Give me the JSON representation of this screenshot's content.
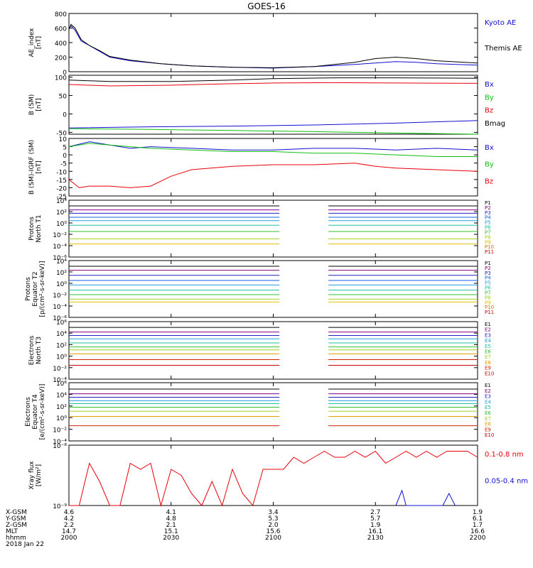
{
  "title": "GOES-16",
  "colors": {
    "black": "#000000",
    "red": "#e8000b",
    "blue": "#1010d0",
    "green": "#10c010"
  },
  "chart_data": [
    {
      "type": "line",
      "id": "ae",
      "ylabel": [
        "AE_index",
        "[nT]"
      ],
      "ylim": [
        0,
        800
      ],
      "yscale": "linear",
      "ticks": [
        {
          "v": 0,
          "label": "0"
        },
        {
          "v": 200,
          "label": "200"
        },
        {
          "v": 400,
          "label": "400"
        },
        {
          "v": 600,
          "label": "600"
        },
        {
          "v": 800,
          "label": "800"
        }
      ],
      "series": [
        {
          "name": "Kyoto AE",
          "color": "#1010d0",
          "x": [
            0,
            1,
            3,
            6,
            10,
            15,
            20,
            30,
            45,
            60,
            80,
            100,
            120,
            140,
            150,
            160,
            170,
            180,
            200
          ],
          "y": [
            600,
            630,
            570,
            420,
            360,
            280,
            200,
            150,
            110,
            80,
            60,
            50,
            70,
            100,
            120,
            140,
            130,
            110,
            90
          ]
        },
        {
          "name": "Themis AE",
          "color": "#000000",
          "x": [
            0,
            1,
            3,
            6,
            10,
            15,
            20,
            30,
            45,
            60,
            80,
            100,
            120,
            140,
            150,
            160,
            170,
            180,
            200
          ],
          "y": [
            580,
            650,
            600,
            440,
            360,
            290,
            210,
            160,
            110,
            80,
            60,
            55,
            70,
            130,
            180,
            200,
            180,
            150,
            120
          ]
        }
      ]
    },
    {
      "type": "line",
      "id": "bsm",
      "ylabel": [
        "B (SM)",
        "[nT]"
      ],
      "ylim": [
        -55,
        105
      ],
      "yscale": "linear",
      "ticks": [
        {
          "v": -50,
          "label": "-50"
        },
        {
          "v": 0,
          "label": "0"
        },
        {
          "v": 50,
          "label": "50"
        },
        {
          "v": 100,
          "label": "100"
        }
      ],
      "series": [
        {
          "name": "Bx",
          "color": "#1010d0",
          "x": [
            0,
            40,
            80,
            120,
            160,
            200
          ],
          "y": [
            -38,
            -35,
            -33,
            -30,
            -25,
            -18
          ]
        },
        {
          "name": "By",
          "color": "#10c010",
          "x": [
            0,
            40,
            80,
            120,
            160,
            200
          ],
          "y": [
            -40,
            -42,
            -45,
            -48,
            -52,
            -55
          ]
        },
        {
          "name": "Bz",
          "color": "#e8000b",
          "x": [
            0,
            20,
            50,
            80,
            100,
            130,
            160,
            200
          ],
          "y": [
            80,
            76,
            78,
            82,
            84,
            85,
            84,
            83
          ]
        },
        {
          "name": "Bmag",
          "color": "#000000",
          "x": [
            0,
            20,
            50,
            80,
            100,
            130,
            160,
            200
          ],
          "y": [
            92,
            88,
            88,
            92,
            96,
            98,
            98,
            97
          ]
        }
      ]
    },
    {
      "type": "line",
      "id": "bigrf",
      "ylabel": [
        "B (SM)-IGRF (SM)",
        "[nT]"
      ],
      "ylim": [
        -25,
        10
      ],
      "yscale": "linear",
      "ticks": [
        {
          "v": 10,
          "label": "10"
        },
        {
          "v": 5,
          "label": "5"
        },
        {
          "v": 0,
          "label": "0"
        },
        {
          "v": -5,
          "label": "-5"
        },
        {
          "v": -10,
          "label": "-10"
        },
        {
          "v": -15,
          "label": "-15"
        },
        {
          "v": -20,
          "label": "-20"
        },
        {
          "v": -25,
          "label": "-25"
        }
      ],
      "series": [
        {
          "name": "Bx",
          "color": "#1010d0",
          "x": [
            0,
            10,
            20,
            30,
            40,
            60,
            80,
            100,
            120,
            140,
            160,
            180,
            200
          ],
          "y": [
            5,
            8,
            6,
            4,
            5,
            4,
            3,
            3,
            4,
            4,
            3,
            4,
            3
          ]
        },
        {
          "name": "By",
          "color": "#10c010",
          "x": [
            0,
            10,
            20,
            30,
            40,
            60,
            80,
            100,
            120,
            140,
            160,
            180,
            200
          ],
          "y": [
            5,
            7,
            6,
            5,
            4,
            3,
            2,
            2,
            1,
            1,
            0,
            -1,
            -1
          ]
        },
        {
          "name": "Bz",
          "color": "#e8000b",
          "x": [
            0,
            5,
            10,
            20,
            30,
            40,
            50,
            60,
            80,
            100,
            120,
            140,
            150,
            160,
            180,
            200
          ],
          "y": [
            -15,
            -20,
            -19,
            -19,
            -20,
            -19,
            -13,
            -9,
            -7,
            -6,
            -6,
            -5,
            -7,
            -8,
            -9,
            -10
          ]
        }
      ]
    },
    {
      "type": "line",
      "id": "pt1",
      "ylabel": [
        "Protons",
        "North T1"
      ],
      "ylim": [
        -6,
        4
      ],
      "yscale": "log",
      "ticks": [
        {
          "v": 4,
          "label": "10⁴"
        },
        {
          "v": 2,
          "label": "10²"
        },
        {
          "v": 0,
          "label": "10⁰"
        },
        {
          "v": -2,
          "label": "10⁻²"
        },
        {
          "v": -4,
          "label": "10⁻⁴"
        },
        {
          "v": -6,
          "label": "10⁻⁶"
        }
      ],
      "gap": [
        103,
        127
      ],
      "series": [
        {
          "name": "P1",
          "color": "#000000",
          "level": 3.0
        },
        {
          "name": "P2",
          "color": "#800080",
          "level": 2.3
        },
        {
          "name": "P3",
          "color": "#2020c0",
          "level": 1.7
        },
        {
          "name": "P4",
          "color": "#1060e0",
          "level": 1.0
        },
        {
          "name": "P5",
          "color": "#20a0e0",
          "level": 0.4
        },
        {
          "name": "P6",
          "color": "#20c0a0",
          "level": -0.4
        },
        {
          "name": "P7",
          "color": "#30c030",
          "level": -1.5
        },
        {
          "name": "P8",
          "color": "#a0d020",
          "level": -2.8
        },
        {
          "name": "P9",
          "color": "#e0c000",
          "level": -3.7
        },
        {
          "name": "P10",
          "color": "#e07000",
          "level": -99
        },
        {
          "name": "P11",
          "color": "#d00000",
          "level": -99
        }
      ]
    },
    {
      "type": "line",
      "id": "pt2",
      "ylabel": [
        "Protons",
        "Equator T2",
        "[p/(cm²-s-sr-keV)]"
      ],
      "ylim": [
        -6,
        4
      ],
      "yscale": "log",
      "ticks": [
        {
          "v": 4,
          "label": "10⁴"
        },
        {
          "v": 2,
          "label": "10²"
        },
        {
          "v": 0,
          "label": "10⁰"
        },
        {
          "v": -2,
          "label": "10⁻²"
        },
        {
          "v": -4,
          "label": "10⁻⁴"
        },
        {
          "v": -6,
          "label": "10⁻⁶"
        }
      ],
      "gap": [
        103,
        127
      ],
      "series": [
        {
          "name": "P1",
          "color": "#000000",
          "level": 3.0
        },
        {
          "name": "P2",
          "color": "#800080",
          "level": 2.3
        },
        {
          "name": "P3",
          "color": "#2020c0",
          "level": 1.4
        },
        {
          "name": "P4",
          "color": "#1060e0",
          "level": 0.5
        },
        {
          "name": "P5",
          "color": "#20a0e0",
          "level": -0.3
        },
        {
          "name": "P6",
          "color": "#20c0a0",
          "level": -1.2
        },
        {
          "name": "P7",
          "color": "#30c030",
          "level": -2.0
        },
        {
          "name": "P8",
          "color": "#a0d020",
          "level": -2.8
        },
        {
          "name": "P9",
          "color": "#e0c000",
          "level": -3.3
        },
        {
          "name": "P10",
          "color": "#e07000",
          "level": -99
        },
        {
          "name": "P11",
          "color": "#d00000",
          "level": -99
        }
      ]
    },
    {
      "type": "line",
      "id": "et3",
      "ylabel": [
        "Electrons",
        "North T3"
      ],
      "ylim": [
        -4,
        6
      ],
      "yscale": "log",
      "ticks": [
        {
          "v": 6,
          "label": "10⁶"
        },
        {
          "v": 4,
          "label": "10⁴"
        },
        {
          "v": 2,
          "label": "10²"
        },
        {
          "v": 0,
          "label": "10⁰"
        },
        {
          "v": -2,
          "label": "10⁻²"
        },
        {
          "v": -4,
          "label": "10⁻⁴"
        }
      ],
      "gap": [
        103,
        127
      ],
      "series": [
        {
          "name": "E1",
          "color": "#000000",
          "level": 5.0
        },
        {
          "name": "E2",
          "color": "#800080",
          "level": 4.2
        },
        {
          "name": "E3",
          "color": "#2020c0",
          "level": 3.6
        },
        {
          "name": "E4",
          "color": "#20a0e0",
          "level": 3.0
        },
        {
          "name": "E5",
          "color": "#20c0a0",
          "level": 2.3
        },
        {
          "name": "E6",
          "color": "#30c030",
          "level": 1.6
        },
        {
          "name": "E7",
          "color": "#a0d020",
          "level": 1.1
        },
        {
          "name": "E8",
          "color": "#e0a000",
          "level": 0.4
        },
        {
          "name": "E9",
          "color": "#d02000",
          "level": -0.6
        },
        {
          "name": "E10",
          "color": "#c00000",
          "level": -1.6
        }
      ]
    },
    {
      "type": "line",
      "id": "et4",
      "ylabel": [
        "Electrons",
        "Equator T4",
        "[e/(cm²-s-sr-keV)]"
      ],
      "ylim": [
        -4,
        6
      ],
      "yscale": "log",
      "ticks": [
        {
          "v": 6,
          "label": "10⁶"
        },
        {
          "v": 4,
          "label": "10⁴"
        },
        {
          "v": 2,
          "label": "10²"
        },
        {
          "v": 0,
          "label": "10⁰"
        },
        {
          "v": -2,
          "label": "10⁻²"
        },
        {
          "v": -4,
          "label": "10⁻⁴"
        }
      ],
      "gap": [
        103,
        127
      ],
      "series": [
        {
          "name": "E1",
          "color": "#000000",
          "level": 4.9
        },
        {
          "name": "E2",
          "color": "#800080",
          "level": 4.1
        },
        {
          "name": "E3",
          "color": "#2020c0",
          "level": 3.5
        },
        {
          "name": "E4",
          "color": "#20a0e0",
          "level": 2.9
        },
        {
          "name": "E5",
          "color": "#20c0a0",
          "level": 2.4
        },
        {
          "name": "E6",
          "color": "#30c030",
          "level": 1.8
        },
        {
          "name": "E7",
          "color": "#a0d020",
          "level": 1.1
        },
        {
          "name": "E8",
          "color": "#e0a000",
          "level": 0.2
        },
        {
          "name": "E9",
          "color": "#d02000",
          "level": -1.4
        },
        {
          "name": "E10",
          "color": "#c00000",
          "level": -99
        }
      ]
    },
    {
      "type": "line",
      "id": "xray",
      "ylabel": [
        "Xray flux",
        "[W/m²]"
      ],
      "ylim": [
        -9,
        -8
      ],
      "yscale": "log",
      "ticks": [
        {
          "v": -8,
          "label": "10⁻⁸"
        },
        {
          "v": -9,
          "label": "10⁻⁹"
        }
      ],
      "series": [
        {
          "name": "0.1-0.8 nm",
          "color": "#e8000b",
          "x": [
            0,
            5,
            10,
            15,
            20,
            25,
            30,
            35,
            40,
            45,
            50,
            55,
            60,
            65,
            70,
            75,
            80,
            85,
            90,
            95,
            100,
            105,
            110,
            115,
            120,
            125,
            130,
            135,
            140,
            145,
            150,
            155,
            160,
            165,
            170,
            175,
            180,
            185,
            190,
            195,
            200
          ],
          "y": [
            -9,
            -9,
            -8.3,
            -8.6,
            -9,
            -9,
            -8.3,
            -8.4,
            -8.3,
            -9,
            -8.4,
            -8.5,
            -8.8,
            -9,
            -8.6,
            -9,
            -8.4,
            -8.8,
            -9,
            -8.4,
            -8.4,
            -8.4,
            -8.2,
            -8.3,
            -8.2,
            -8.1,
            -8.2,
            -8.2,
            -8.1,
            -8.2,
            -8.1,
            -8.3,
            -8.2,
            -8.1,
            -8.2,
            -8.1,
            -8.2,
            -8.1,
            -8.1,
            -8.1,
            -8.2
          ]
        },
        {
          "name": "0.05-0.4 nm",
          "color": "#1010d0",
          "x": [
            160,
            163,
            165,
            183,
            186,
            189
          ],
          "y": [
            -9,
            -8.75,
            -9,
            -9,
            -8.8,
            -9
          ]
        }
      ]
    }
  ],
  "xaxis": {
    "rows": [
      {
        "label": "X-GSM",
        "values": [
          "4.6",
          "4.1",
          "3.4",
          "2.7",
          "1.9"
        ]
      },
      {
        "label": "Y-GSM",
        "values": [
          "4.2",
          "4.8",
          "5.3",
          "5.7",
          "6.1"
        ]
      },
      {
        "label": "Z-GSM",
        "values": [
          "2.2",
          "2.1",
          "2.0",
          "1.9",
          "1.7"
        ]
      },
      {
        "label": "MLT",
        "values": [
          "14.7",
          "15.1",
          "15.6",
          "16.1",
          "16.6"
        ]
      },
      {
        "label": "hhmm",
        "values": [
          "2000",
          "2030",
          "2100",
          "2130",
          "2200"
        ]
      }
    ],
    "date": "2018 Jan 22",
    "xlim": [
      0,
      200
    ]
  }
}
